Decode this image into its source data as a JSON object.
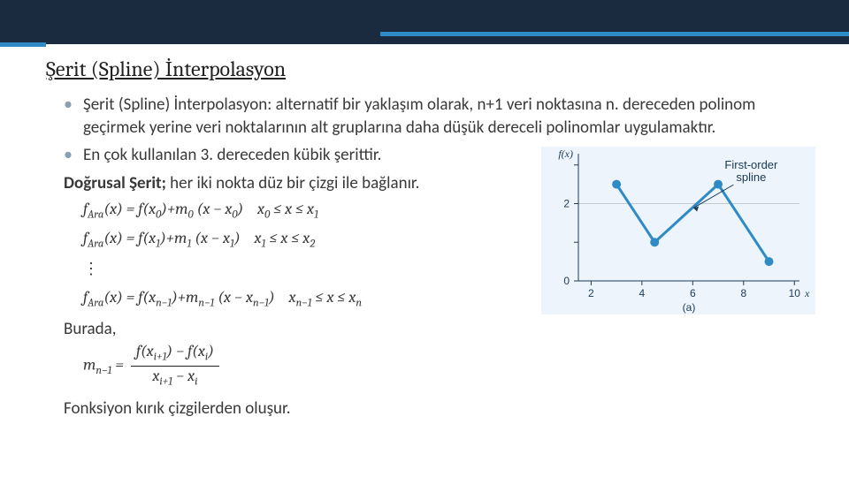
{
  "header": {
    "banner_color": "#1a2b3f",
    "accent_color": "#2e8bc6"
  },
  "title": "Şerit (Spline) İnterpolasyon",
  "bullets": {
    "item1": "Şerit (Spline) İnterpolasyon: alternatif bir yaklaşım olarak, n+1 veri noktasına n. dereceden polinom geçirmek yerine veri noktalarının alt gruplarına daha düşük dereceli polinomlar uygulamaktır.",
    "item2": "En  çok kullanılan 3. dereceden kübik şerittir."
  },
  "subheading": {
    "bold": "Doğrusal Şerit;",
    "rest": " her iki nokta düz bir çizgi ile bağlanır."
  },
  "equations": {
    "line1_lhs": "f",
    "line1_sub": "Ara",
    "eq1": "fAra(x) = f(x₀)+m₀ (x − x₀)    x₀ ≤ x ≤ x₁",
    "eq2": "fAra(x) = f(x₁)+m₁ (x − x₁)    x₁ ≤ x ≤ x₂",
    "eq3": "fAra(x) = f(xn−1)+mn−1 (x − xn−1)    xn−1 ≤ x ≤ xn",
    "burada": "Burada,",
    "slope_lhs": "mn−1 =",
    "slope_num": "f(xi+1) − f(xi)",
    "slope_den": "xi+1 − xi",
    "closing": "Fonksiyon kırık çizgilerden oluşur."
  },
  "chart": {
    "type": "line",
    "annotation": "First-order spline",
    "ylabel": "f(x)",
    "xlabel": "x",
    "sub_label": "(a)",
    "xticks": [
      2,
      4,
      6,
      8,
      10
    ],
    "yticks": [
      0,
      2
    ],
    "ylim": [
      0,
      3.2
    ],
    "xlim": [
      1.5,
      10.2
    ],
    "points_x": [
      3.0,
      4.5,
      7.0,
      9.0
    ],
    "points_y": [
      2.5,
      1.0,
      2.5,
      0.5
    ],
    "line_color": "#2e8bc6",
    "marker_fill": "#2e8bc6",
    "marker_radius": 5,
    "line_width": 3,
    "background_color": "#edf4fb",
    "grid_color": "#bfc9d0",
    "text_color": "#1b3a56",
    "label_fontsize": 12
  }
}
